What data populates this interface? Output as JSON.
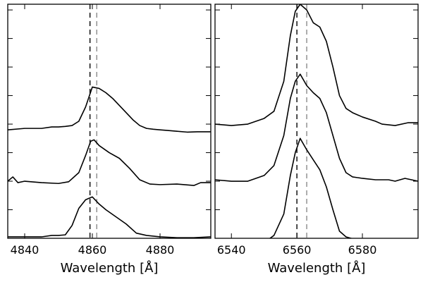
{
  "chart_data": [
    {
      "type": "line",
      "xlabel": "Wavelength [Å]",
      "xlim": [
        4835,
        4895
      ],
      "xticks": [
        4840,
        4860,
        4880
      ],
      "ylim": [
        0,
        8.2
      ],
      "y_ticks": [
        1,
        2,
        3,
        4,
        5,
        6,
        7,
        8
      ],
      "y_tick_labels_shown": false,
      "reference_lines": [
        {
          "x": 4859.3,
          "color": "#000000",
          "style": "dashed"
        },
        {
          "x": 4861.3,
          "color": "#8a8a8a",
          "style": "dashed"
        }
      ],
      "series": [
        {
          "points": [
            [
              4835,
              3.8
            ],
            [
              4840,
              3.85
            ],
            [
              4845,
              3.85
            ],
            [
              4848,
              3.9
            ],
            [
              4850,
              3.9
            ],
            [
              4852,
              3.92
            ],
            [
              4854,
              3.95
            ],
            [
              4856,
              4.1
            ],
            [
              4858,
              4.6
            ],
            [
              4860,
              5.3
            ],
            [
              4862,
              5.25
            ],
            [
              4864,
              5.1
            ],
            [
              4866,
              4.9
            ],
            [
              4868,
              4.65
            ],
            [
              4870,
              4.4
            ],
            [
              4872,
              4.15
            ],
            [
              4874,
              3.95
            ],
            [
              4876,
              3.85
            ],
            [
              4878,
              3.82
            ],
            [
              4880,
              3.8
            ],
            [
              4882,
              3.78
            ],
            [
              4885,
              3.75
            ],
            [
              4888,
              3.72
            ],
            [
              4891,
              3.73
            ],
            [
              4895,
              3.73
            ]
          ]
        },
        {
          "points": [
            [
              4835,
              2.0
            ],
            [
              4836.5,
              2.15
            ],
            [
              4838,
              1.95
            ],
            [
              4840,
              2.0
            ],
            [
              4845,
              1.95
            ],
            [
              4850,
              1.92
            ],
            [
              4853,
              1.98
            ],
            [
              4856,
              2.3
            ],
            [
              4858,
              2.9
            ],
            [
              4859.5,
              3.4
            ],
            [
              4860.5,
              3.45
            ],
            [
              4862,
              3.25
            ],
            [
              4865,
              3.0
            ],
            [
              4868,
              2.8
            ],
            [
              4871,
              2.45
            ],
            [
              4874,
              2.05
            ],
            [
              4877,
              1.9
            ],
            [
              4880,
              1.88
            ],
            [
              4885,
              1.9
            ],
            [
              4890,
              1.85
            ],
            [
              4892,
              1.95
            ],
            [
              4895,
              1.95
            ]
          ]
        },
        {
          "points": [
            [
              4835,
              0.05
            ],
            [
              4840,
              0.05
            ],
            [
              4845,
              0.05
            ],
            [
              4848,
              0.1
            ],
            [
              4850,
              0.1
            ],
            [
              4852,
              0.12
            ],
            [
              4854,
              0.45
            ],
            [
              4856,
              1.05
            ],
            [
              4858,
              1.35
            ],
            [
              4860,
              1.45
            ],
            [
              4862,
              1.2
            ],
            [
              4864,
              1.0
            ],
            [
              4867,
              0.75
            ],
            [
              4870,
              0.5
            ],
            [
              4873,
              0.18
            ],
            [
              4876,
              0.1
            ],
            [
              4880,
              0.05
            ],
            [
              4885,
              0.02
            ],
            [
              4890,
              0.02
            ],
            [
              4895,
              0.05
            ]
          ]
        }
      ]
    },
    {
      "type": "line",
      "xlabel": "Wavelength [Å]",
      "xlim": [
        6535,
        6597
      ],
      "xticks": [
        6540,
        6560,
        6580
      ],
      "ylim": [
        0,
        8.2
      ],
      "y_ticks": [
        1,
        2,
        3,
        4,
        5,
        6,
        7,
        8
      ],
      "y_tick_labels_shown": false,
      "reference_lines": [
        {
          "x": 6560.0,
          "color": "#000000",
          "style": "dashed"
        },
        {
          "x": 6563.0,
          "color": "#8a8a8a",
          "style": "dashed"
        }
      ],
      "series": [
        {
          "points": [
            [
              6535,
              4.0
            ],
            [
              6540,
              3.95
            ],
            [
              6545,
              4.0
            ],
            [
              6550,
              4.2
            ],
            [
              6553,
              4.45
            ],
            [
              6556,
              5.5
            ],
            [
              6558,
              7.1
            ],
            [
              6559.5,
              7.95
            ],
            [
              6561,
              8.2
            ],
            [
              6563,
              8.0
            ],
            [
              6565,
              7.55
            ],
            [
              6567,
              7.4
            ],
            [
              6569,
              6.9
            ],
            [
              6571,
              6.0
            ],
            [
              6573,
              5.0
            ],
            [
              6575,
              4.55
            ],
            [
              6577,
              4.4
            ],
            [
              6580,
              4.25
            ],
            [
              6584,
              4.1
            ],
            [
              6586,
              4.0
            ],
            [
              6590,
              3.95
            ],
            [
              6594,
              4.05
            ],
            [
              6597,
              4.05
            ]
          ]
        },
        {
          "points": [
            [
              6535,
              2.05
            ],
            [
              6540,
              2.0
            ],
            [
              6545,
              2.0
            ],
            [
              6550,
              2.2
            ],
            [
              6553,
              2.55
            ],
            [
              6556,
              3.6
            ],
            [
              6558,
              4.9
            ],
            [
              6559.5,
              5.5
            ],
            [
              6561,
              5.75
            ],
            [
              6563,
              5.35
            ],
            [
              6565,
              5.1
            ],
            [
              6567,
              4.9
            ],
            [
              6569,
              4.4
            ],
            [
              6571,
              3.6
            ],
            [
              6573,
              2.8
            ],
            [
              6575,
              2.3
            ],
            [
              6577,
              2.15
            ],
            [
              6580,
              2.1
            ],
            [
              6584,
              2.05
            ],
            [
              6588,
              2.05
            ],
            [
              6590,
              2.0
            ],
            [
              6593,
              2.1
            ],
            [
              6597,
              2.0
            ]
          ]
        },
        {
          "points": [
            [
              6535,
              -0.2
            ],
            [
              6540,
              -0.25
            ],
            [
              6545,
              -0.25
            ],
            [
              6550,
              -0.15
            ],
            [
              6553,
              0.1
            ],
            [
              6556,
              0.85
            ],
            [
              6558,
              2.2
            ],
            [
              6559.5,
              3.0
            ],
            [
              6561,
              3.5
            ],
            [
              6563,
              3.1
            ],
            [
              6565,
              2.75
            ],
            [
              6567,
              2.4
            ],
            [
              6569,
              1.8
            ],
            [
              6571,
              1.0
            ],
            [
              6573,
              0.25
            ],
            [
              6575,
              0.05
            ],
            [
              6578,
              -0.05
            ],
            [
              6581,
              -0.1
            ],
            [
              6585,
              -0.1
            ],
            [
              6590,
              -0.1
            ],
            [
              6597,
              -0.1
            ]
          ]
        }
      ]
    }
  ]
}
